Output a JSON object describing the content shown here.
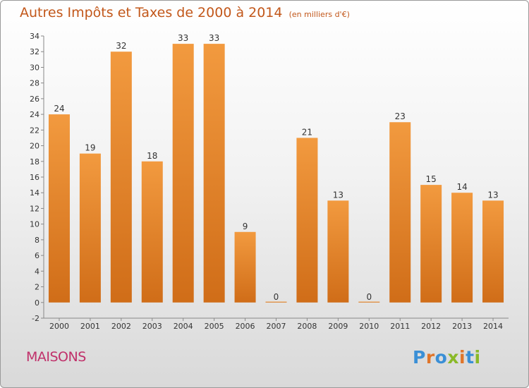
{
  "chart_data": {
    "type": "bar",
    "title": "Autres Impôts et Taxes de 2000 à 2014",
    "subtitle": "(en milliers d'€)",
    "categories": [
      "2000",
      "2001",
      "2002",
      "2003",
      "2004",
      "2005",
      "2006",
      "2007",
      "2008",
      "2009",
      "2010",
      "2011",
      "2012",
      "2013",
      "2014"
    ],
    "values": [
      24,
      19,
      32,
      18,
      33,
      33,
      9,
      0,
      21,
      13,
      0,
      23,
      15,
      14,
      13
    ],
    "ylim": [
      -2,
      34
    ],
    "yticks": [
      -2,
      0,
      2,
      4,
      6,
      8,
      10,
      12,
      14,
      16,
      18,
      20,
      22,
      24,
      26,
      28,
      30,
      32,
      34
    ],
    "grid": false,
    "bar_color": "#f29a3f",
    "bar_color_dark": "#d06d18"
  },
  "footer": {
    "label": "MAISONS"
  },
  "logo": {
    "text": "Proxiti",
    "letters": [
      {
        "char": "P",
        "color": "#3a8fd6"
      },
      {
        "char": "r",
        "color": "#e0752a"
      },
      {
        "char": "o",
        "color": "#3a8fd6"
      },
      {
        "char": "x",
        "color": "#8ab928"
      },
      {
        "char": "i",
        "color": "#e0752a"
      },
      {
        "char": "t",
        "color": "#3a8fd6"
      },
      {
        "char": "i",
        "color": "#8ab928"
      }
    ]
  }
}
